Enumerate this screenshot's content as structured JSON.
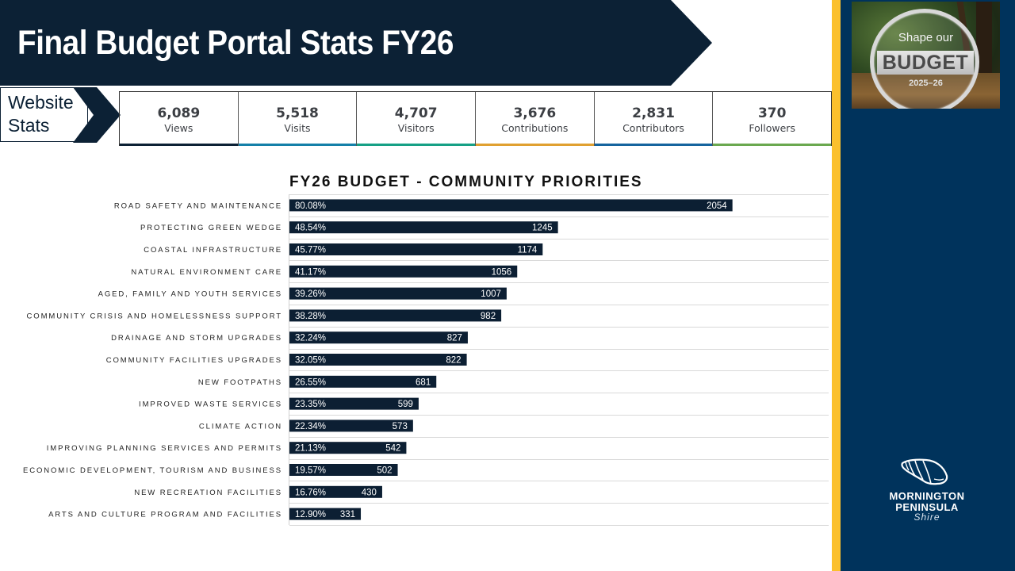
{
  "header": {
    "title": "Final Budget Portal Stats FY26"
  },
  "website_stats": {
    "label_line1": "Website",
    "label_line2": "Stats",
    "cards": [
      {
        "value": "6,089",
        "label": "Views",
        "accent": "#0c2135"
      },
      {
        "value": "5,518",
        "label": "Visits",
        "accent": "#1480a8"
      },
      {
        "value": "4,707",
        "label": "Visitors",
        "accent": "#16a085"
      },
      {
        "value": "3,676",
        "label": "Contributions",
        "accent": "#e0a030"
      },
      {
        "value": "2,831",
        "label": "Contributors",
        "accent": "#15649e"
      },
      {
        "value": "370",
        "label": "Followers",
        "accent": "#6aa84f"
      }
    ]
  },
  "badge": {
    "top": "Shape our",
    "main": "BUDGET",
    "year": "2025–26"
  },
  "logo": {
    "line1": "MORNINGTON",
    "line2": "PENINSULA",
    "line3": "Shire"
  },
  "colors": {
    "navy": "#0c2135",
    "panel": "#00335c",
    "gold": "#fbc02d",
    "bar": "#0c1f33",
    "grid": "#d9d9d9"
  },
  "chart_data": {
    "type": "bar",
    "orientation": "horizontal",
    "title": "FY26 BUDGET - COMMUNITY PRIORITIES",
    "xlabel": "",
    "ylabel": "",
    "xlim": [
      0,
      2500
    ],
    "grid": true,
    "legend": "none",
    "categories": [
      "ROAD SAFETY AND MAINTENANCE",
      "PROTECTING GREEN WEDGE",
      "COASTAL INFRASTRUCTURE",
      "NATURAL ENVIRONMENT CARE",
      "AGED, FAMILY AND YOUTH SERVICES",
      "COMMUNITY CRISIS AND HOMELESSNESS SUPPORT",
      "DRAINAGE AND STORM UPGRADES",
      "COMMUNITY FACILITIES UPGRADES",
      "NEW FOOTPATHS",
      "IMPROVED WASTE SERVICES",
      "CLIMATE ACTION",
      "IMPROVING PLANNING SERVICES AND PERMITS",
      "ECONOMIC DEVELOPMENT, TOURISM AND BUSINESS",
      "NEW RECREATION FACILITIES",
      "ARTS AND CULTURE PROGRAM AND FACILITIES"
    ],
    "values": [
      2054,
      1245,
      1174,
      1056,
      1007,
      982,
      827,
      822,
      681,
      599,
      573,
      542,
      502,
      430,
      331
    ],
    "percentages": [
      "80.08%",
      "48.54%",
      "45.77%",
      "41.17%",
      "39.26%",
      "38.28%",
      "32.24%",
      "32.05%",
      "26.55%",
      "23.35%",
      "22.34%",
      "21.13%",
      "19.57%",
      "16.76%",
      "12.90%"
    ]
  }
}
